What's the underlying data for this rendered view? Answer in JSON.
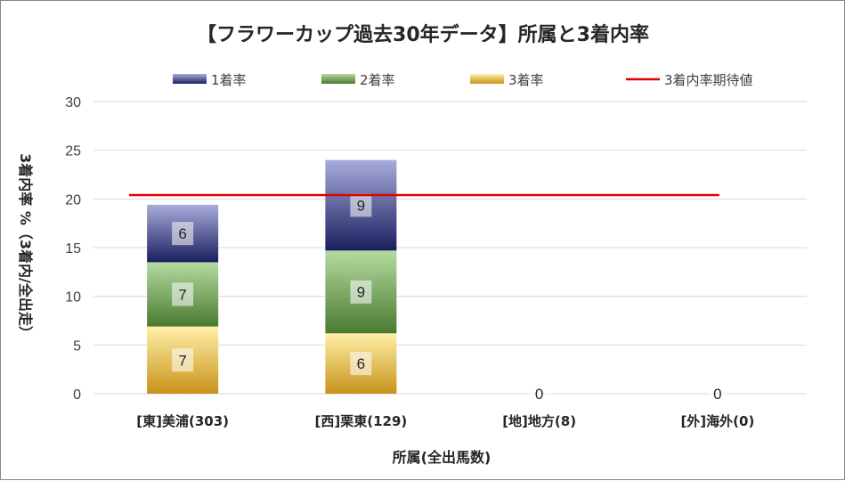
{
  "chart_data": {
    "type": "bar",
    "stacked": true,
    "title": "【フラワーカップ過去30年データ】所属と3着内率",
    "xlabel": "所属(全出馬数)",
    "ylabel": "3着内率 %（3着内/全出走）",
    "ylim": [
      0,
      30
    ],
    "yticks": [
      0,
      5,
      10,
      15,
      20,
      25,
      30
    ],
    "grid": true,
    "legend_position": "top",
    "categories": [
      "[東]美浦(303)",
      "[西]栗東(129)",
      "[地]地方(8)",
      "[外]海外(0)"
    ],
    "series": [
      {
        "name": "3着率",
        "values": [
          6.9,
          6.2,
          0,
          0
        ],
        "labels": [
          "7",
          "6",
          "0",
          "0"
        ],
        "color_top": "#fff0a8",
        "color_bottom": "#c8921a"
      },
      {
        "name": "2着率",
        "values": [
          6.6,
          8.5,
          0,
          0
        ],
        "labels": [
          "7",
          "9",
          "",
          ""
        ],
        "color_top": "#b5dba0",
        "color_bottom": "#4a7a30"
      },
      {
        "name": "1着率",
        "values": [
          5.9,
          9.3,
          0,
          0
        ],
        "labels": [
          "6",
          "9",
          "",
          ""
        ],
        "color_top": "#a8acdc",
        "color_bottom": "#1a1e5e"
      }
    ],
    "reference_line": {
      "name": "3着内率期待値",
      "value": 20.4,
      "color": "#e00000"
    }
  }
}
